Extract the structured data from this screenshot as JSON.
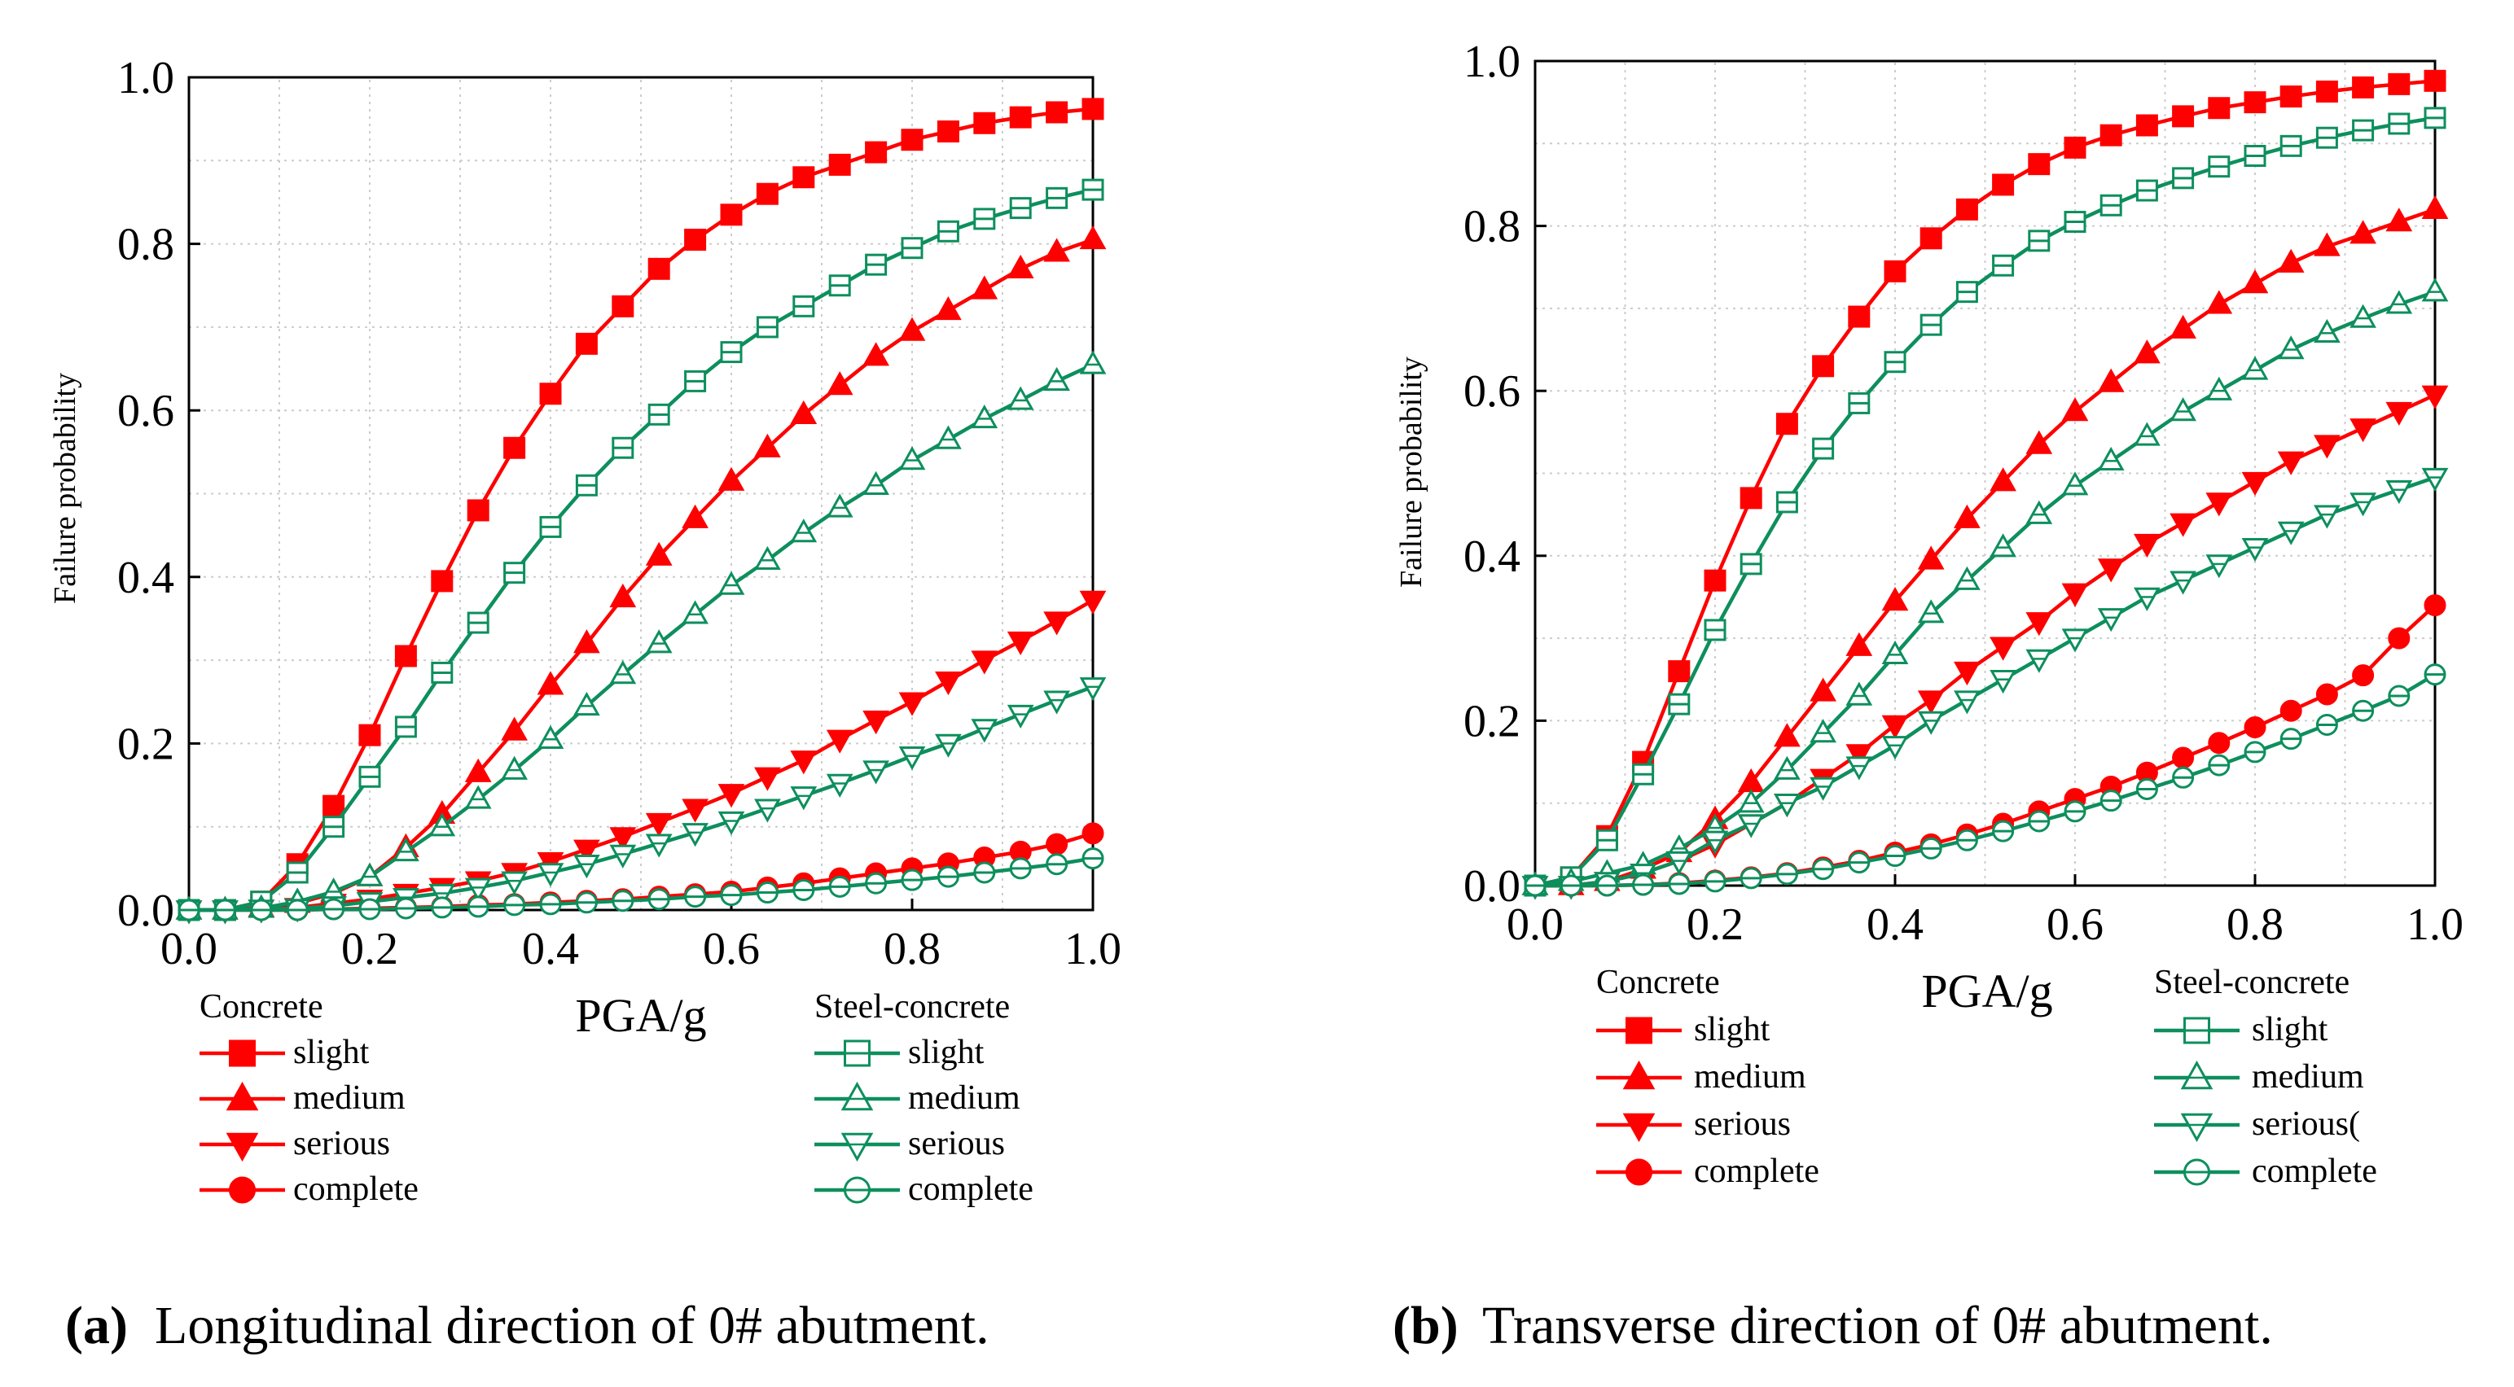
{
  "figure": {
    "panels": [
      {
        "label": "a",
        "caption": "Longitudinal direction of 0# abutment."
      },
      {
        "label": "b",
        "caption": "Transverse direction of 0# abutment."
      }
    ],
    "colors": {
      "concrete": "#ff0000",
      "steel_concrete": "#0d8f5d",
      "grid": "#cccccc"
    }
  },
  "chart_data": [
    {
      "type": "line",
      "panel": "a",
      "title": "",
      "xlabel": "PGA/g",
      "ylabel": "Failure probability",
      "xlim": [
        0.0,
        1.0
      ],
      "ylim": [
        0.0,
        1.0
      ],
      "xticks": [
        "0.0",
        "0.2",
        "0.4",
        "0.6",
        "0.8",
        "1.0"
      ],
      "yticks": [
        "0.0",
        "0.2",
        "0.4",
        "0.6",
        "0.8",
        "1.0"
      ],
      "grid": true,
      "legend_groups": [
        "Concrete",
        "Steel-concrete"
      ],
      "legend_labels": [
        "slight",
        "medium",
        "serious",
        "complete"
      ],
      "x": [
        0.0,
        0.04,
        0.08,
        0.12,
        0.16,
        0.2,
        0.24,
        0.28,
        0.32,
        0.36,
        0.4,
        0.44,
        0.48,
        0.52,
        0.56,
        0.6,
        0.64,
        0.68,
        0.72,
        0.76,
        0.8,
        0.84,
        0.88,
        0.92,
        0.96,
        1.0
      ],
      "series": [
        {
          "group": "Concrete",
          "name": "slight",
          "marker": "square",
          "filled": true,
          "values": [
            0.0,
            0.0,
            0.01,
            0.055,
            0.125,
            0.21,
            0.305,
            0.395,
            0.48,
            0.555,
            0.62,
            0.68,
            0.725,
            0.77,
            0.805,
            0.835,
            0.86,
            0.88,
            0.895,
            0.91,
            0.925,
            0.935,
            0.945,
            0.952,
            0.958,
            0.962
          ]
        },
        {
          "group": "Concrete",
          "name": "medium",
          "marker": "triangle-up",
          "filled": true,
          "values": [
            0.0,
            0.0,
            0.003,
            0.008,
            0.02,
            0.04,
            0.075,
            0.115,
            0.165,
            0.215,
            0.27,
            0.32,
            0.375,
            0.425,
            0.47,
            0.515,
            0.555,
            0.595,
            0.63,
            0.665,
            0.695,
            0.72,
            0.745,
            0.77,
            0.79,
            0.805
          ]
        },
        {
          "group": "Concrete",
          "name": "serious",
          "marker": "triangle-down",
          "filled": true,
          "values": [
            0.0,
            0.0,
            0.001,
            0.003,
            0.008,
            0.013,
            0.02,
            0.027,
            0.035,
            0.045,
            0.058,
            0.073,
            0.088,
            0.105,
            0.122,
            0.14,
            0.16,
            0.18,
            0.205,
            0.228,
            0.25,
            0.275,
            0.3,
            0.323,
            0.347,
            0.372
          ]
        },
        {
          "group": "Concrete",
          "name": "complete",
          "marker": "circle",
          "filled": true,
          "values": [
            0.0,
            0.0,
            0.0,
            0.0,
            0.001,
            0.002,
            0.003,
            0.004,
            0.006,
            0.007,
            0.009,
            0.011,
            0.013,
            0.016,
            0.019,
            0.022,
            0.027,
            0.032,
            0.038,
            0.044,
            0.05,
            0.056,
            0.063,
            0.07,
            0.079,
            0.092
          ]
        },
        {
          "group": "Steel-concrete",
          "name": "slight",
          "marker": "square",
          "filled": false,
          "values": [
            0.0,
            0.0,
            0.01,
            0.045,
            0.1,
            0.16,
            0.22,
            0.285,
            0.345,
            0.405,
            0.46,
            0.51,
            0.555,
            0.595,
            0.635,
            0.67,
            0.7,
            0.725,
            0.75,
            0.775,
            0.795,
            0.815,
            0.83,
            0.843,
            0.855,
            0.865
          ]
        },
        {
          "group": "Steel-concrete",
          "name": "medium",
          "marker": "triangle-up",
          "filled": false,
          "values": [
            0.0,
            0.0,
            0.002,
            0.01,
            0.022,
            0.04,
            0.07,
            0.1,
            0.133,
            0.168,
            0.205,
            0.245,
            0.283,
            0.32,
            0.355,
            0.39,
            0.42,
            0.453,
            0.483,
            0.51,
            0.54,
            0.565,
            0.59,
            0.612,
            0.635,
            0.655
          ]
        },
        {
          "group": "Steel-concrete",
          "name": "serious",
          "marker": "triangle-down",
          "filled": false,
          "values": [
            0.0,
            0.0,
            0.001,
            0.002,
            0.005,
            0.01,
            0.015,
            0.02,
            0.027,
            0.035,
            0.045,
            0.055,
            0.067,
            0.08,
            0.093,
            0.107,
            0.122,
            0.137,
            0.152,
            0.168,
            0.185,
            0.2,
            0.218,
            0.235,
            0.252,
            0.268
          ]
        },
        {
          "group": "Steel-concrete",
          "name": "complete",
          "marker": "circle",
          "filled": false,
          "values": [
            0.0,
            0.0,
            0.0,
            0.0,
            0.001,
            0.001,
            0.002,
            0.003,
            0.004,
            0.006,
            0.007,
            0.009,
            0.011,
            0.013,
            0.016,
            0.018,
            0.021,
            0.024,
            0.028,
            0.032,
            0.036,
            0.04,
            0.045,
            0.05,
            0.055,
            0.062
          ]
        }
      ]
    },
    {
      "type": "line",
      "panel": "b",
      "title": "",
      "xlabel": "PGA/g",
      "ylabel": "Failure probability",
      "xlim": [
        0.0,
        1.0
      ],
      "ylim": [
        0.0,
        1.0
      ],
      "xticks": [
        "0.0",
        "0.2",
        "0.4",
        "0.6",
        "0.8",
        "1.0"
      ],
      "yticks": [
        "0.0",
        "0.2",
        "0.4",
        "0.6",
        "0.8",
        "1.0"
      ],
      "grid": true,
      "legend_groups": [
        "Concrete",
        "Steel-concrete"
      ],
      "legend_labels_concrete": [
        "slight",
        "medium",
        "serious",
        "complete"
      ],
      "legend_labels_steel": [
        "slight",
        "medium",
        "serious(",
        "complete"
      ],
      "x": [
        0.0,
        0.04,
        0.08,
        0.12,
        0.16,
        0.2,
        0.24,
        0.28,
        0.32,
        0.36,
        0.4,
        0.44,
        0.48,
        0.52,
        0.56,
        0.6,
        0.64,
        0.68,
        0.72,
        0.76,
        0.8,
        0.84,
        0.88,
        0.92,
        0.96,
        1.0
      ],
      "series": [
        {
          "group": "Concrete",
          "name": "slight",
          "marker": "square",
          "filled": true,
          "values": [
            0.0,
            0.01,
            0.06,
            0.15,
            0.26,
            0.37,
            0.47,
            0.56,
            0.63,
            0.69,
            0.745,
            0.785,
            0.82,
            0.85,
            0.875,
            0.895,
            0.91,
            0.922,
            0.933,
            0.943,
            0.95,
            0.957,
            0.963,
            0.968,
            0.972,
            0.976
          ]
        },
        {
          "group": "Concrete",
          "name": "medium",
          "marker": "triangle-up",
          "filled": true,
          "values": [
            0.0,
            0.0,
            0.005,
            0.02,
            0.04,
            0.08,
            0.125,
            0.18,
            0.235,
            0.29,
            0.345,
            0.395,
            0.445,
            0.49,
            0.535,
            0.575,
            0.61,
            0.645,
            0.675,
            0.705,
            0.73,
            0.755,
            0.775,
            0.79,
            0.805,
            0.82
          ]
        },
        {
          "group": "Concrete",
          "name": "serious",
          "marker": "triangle-down",
          "filled": true,
          "values": [
            0.0,
            0.0,
            0.005,
            0.015,
            0.03,
            0.05,
            0.075,
            0.1,
            0.13,
            0.16,
            0.195,
            0.225,
            0.26,
            0.29,
            0.32,
            0.355,
            0.385,
            0.415,
            0.44,
            0.465,
            0.49,
            0.515,
            0.535,
            0.555,
            0.575,
            0.595
          ]
        },
        {
          "group": "Concrete",
          "name": "complete",
          "marker": "circle",
          "filled": true,
          "values": [
            0.0,
            0.0,
            0.0,
            0.001,
            0.003,
            0.006,
            0.01,
            0.015,
            0.022,
            0.03,
            0.04,
            0.05,
            0.062,
            0.075,
            0.09,
            0.105,
            0.12,
            0.137,
            0.155,
            0.173,
            0.192,
            0.212,
            0.232,
            0.255,
            0.3,
            0.34
          ]
        },
        {
          "group": "Steel-concrete",
          "name": "slight",
          "marker": "square",
          "filled": false,
          "values": [
            0.0,
            0.01,
            0.055,
            0.135,
            0.22,
            0.31,
            0.39,
            0.465,
            0.53,
            0.585,
            0.635,
            0.68,
            0.72,
            0.752,
            0.782,
            0.805,
            0.825,
            0.843,
            0.858,
            0.872,
            0.885,
            0.897,
            0.907,
            0.916,
            0.924,
            0.931
          ]
        },
        {
          "group": "Steel-concrete",
          "name": "medium",
          "marker": "triangle-up",
          "filled": false,
          "values": [
            0.0,
            0.005,
            0.015,
            0.025,
            0.045,
            0.07,
            0.1,
            0.14,
            0.185,
            0.23,
            0.28,
            0.33,
            0.37,
            0.41,
            0.45,
            0.485,
            0.515,
            0.545,
            0.575,
            0.6,
            0.625,
            0.65,
            0.67,
            0.688,
            0.705,
            0.72
          ]
        },
        {
          "group": "Steel-concrete",
          "name": "serious",
          "marker": "triangle-down",
          "filled": false,
          "values": [
            0.0,
            0.0,
            0.005,
            0.015,
            0.03,
            0.055,
            0.075,
            0.1,
            0.12,
            0.145,
            0.17,
            0.2,
            0.225,
            0.25,
            0.275,
            0.3,
            0.325,
            0.35,
            0.37,
            0.39,
            0.41,
            0.43,
            0.45,
            0.465,
            0.48,
            0.495
          ]
        },
        {
          "group": "Steel-concrete",
          "name": "complete",
          "marker": "circle",
          "filled": false,
          "values": [
            0.0,
            0.0,
            0.0,
            0.001,
            0.002,
            0.005,
            0.009,
            0.014,
            0.02,
            0.028,
            0.036,
            0.045,
            0.055,
            0.066,
            0.078,
            0.09,
            0.103,
            0.117,
            0.131,
            0.146,
            0.162,
            0.178,
            0.195,
            0.212,
            0.23,
            0.256
          ]
        }
      ]
    }
  ]
}
